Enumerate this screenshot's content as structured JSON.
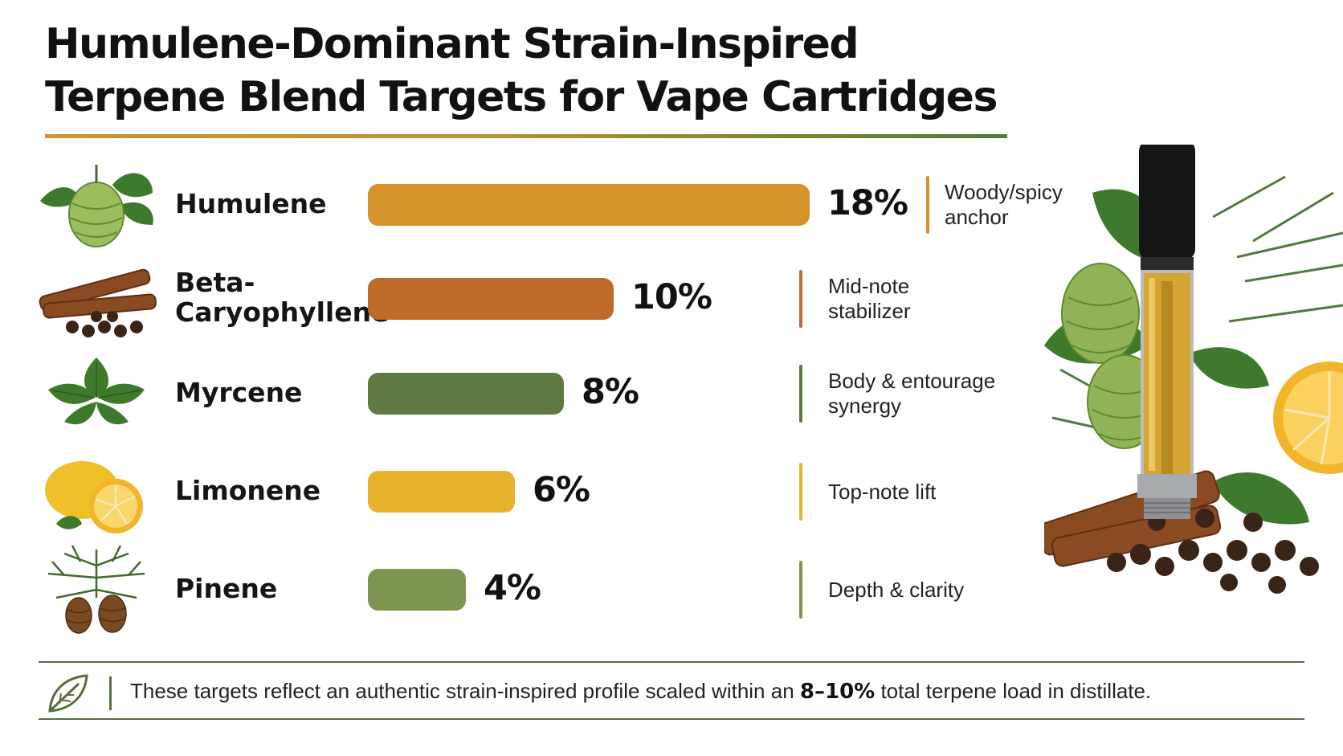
{
  "title": {
    "line1": "Humulene-Dominant Strain-Inspired",
    "line2": "Terpene Blend Targets for Vape Cartridges"
  },
  "chart_data": {
    "type": "bar",
    "orientation": "horizontal",
    "unit": "%",
    "categories": [
      "Humulene",
      "Beta-\nCaryophyllene",
      "Myrcene",
      "Limonene",
      "Pinene"
    ],
    "values": [
      18,
      10,
      8,
      6,
      4
    ],
    "value_labels": [
      "18%",
      "10%",
      "8%",
      "6%",
      "4%"
    ],
    "notes": [
      "Woody/spicy\nanchor",
      "Mid-note\nstabilizer",
      "Body & entourage\nsynergy",
      "Top-note lift",
      "Depth & clarity"
    ],
    "colors": [
      "#d3922a",
      "#bf6a29",
      "#5e7a40",
      "#e8b32c",
      "#7e9551"
    ],
    "icons": [
      "hops-icon",
      "cinnamon-peppercorn-icon",
      "basil-leaf-icon",
      "lemon-icon",
      "pine-cone-icon"
    ],
    "xlim": [
      0,
      18
    ]
  },
  "footer": {
    "icon": "leaf-icon",
    "text_before": "These targets reflect an authentic strain-inspired profile scaled within an ",
    "highlight": "8–10%",
    "text_after": " total terpene load in distillate."
  },
  "illustration": "vape-cartridge-with-hops-citrus-pine-spices"
}
